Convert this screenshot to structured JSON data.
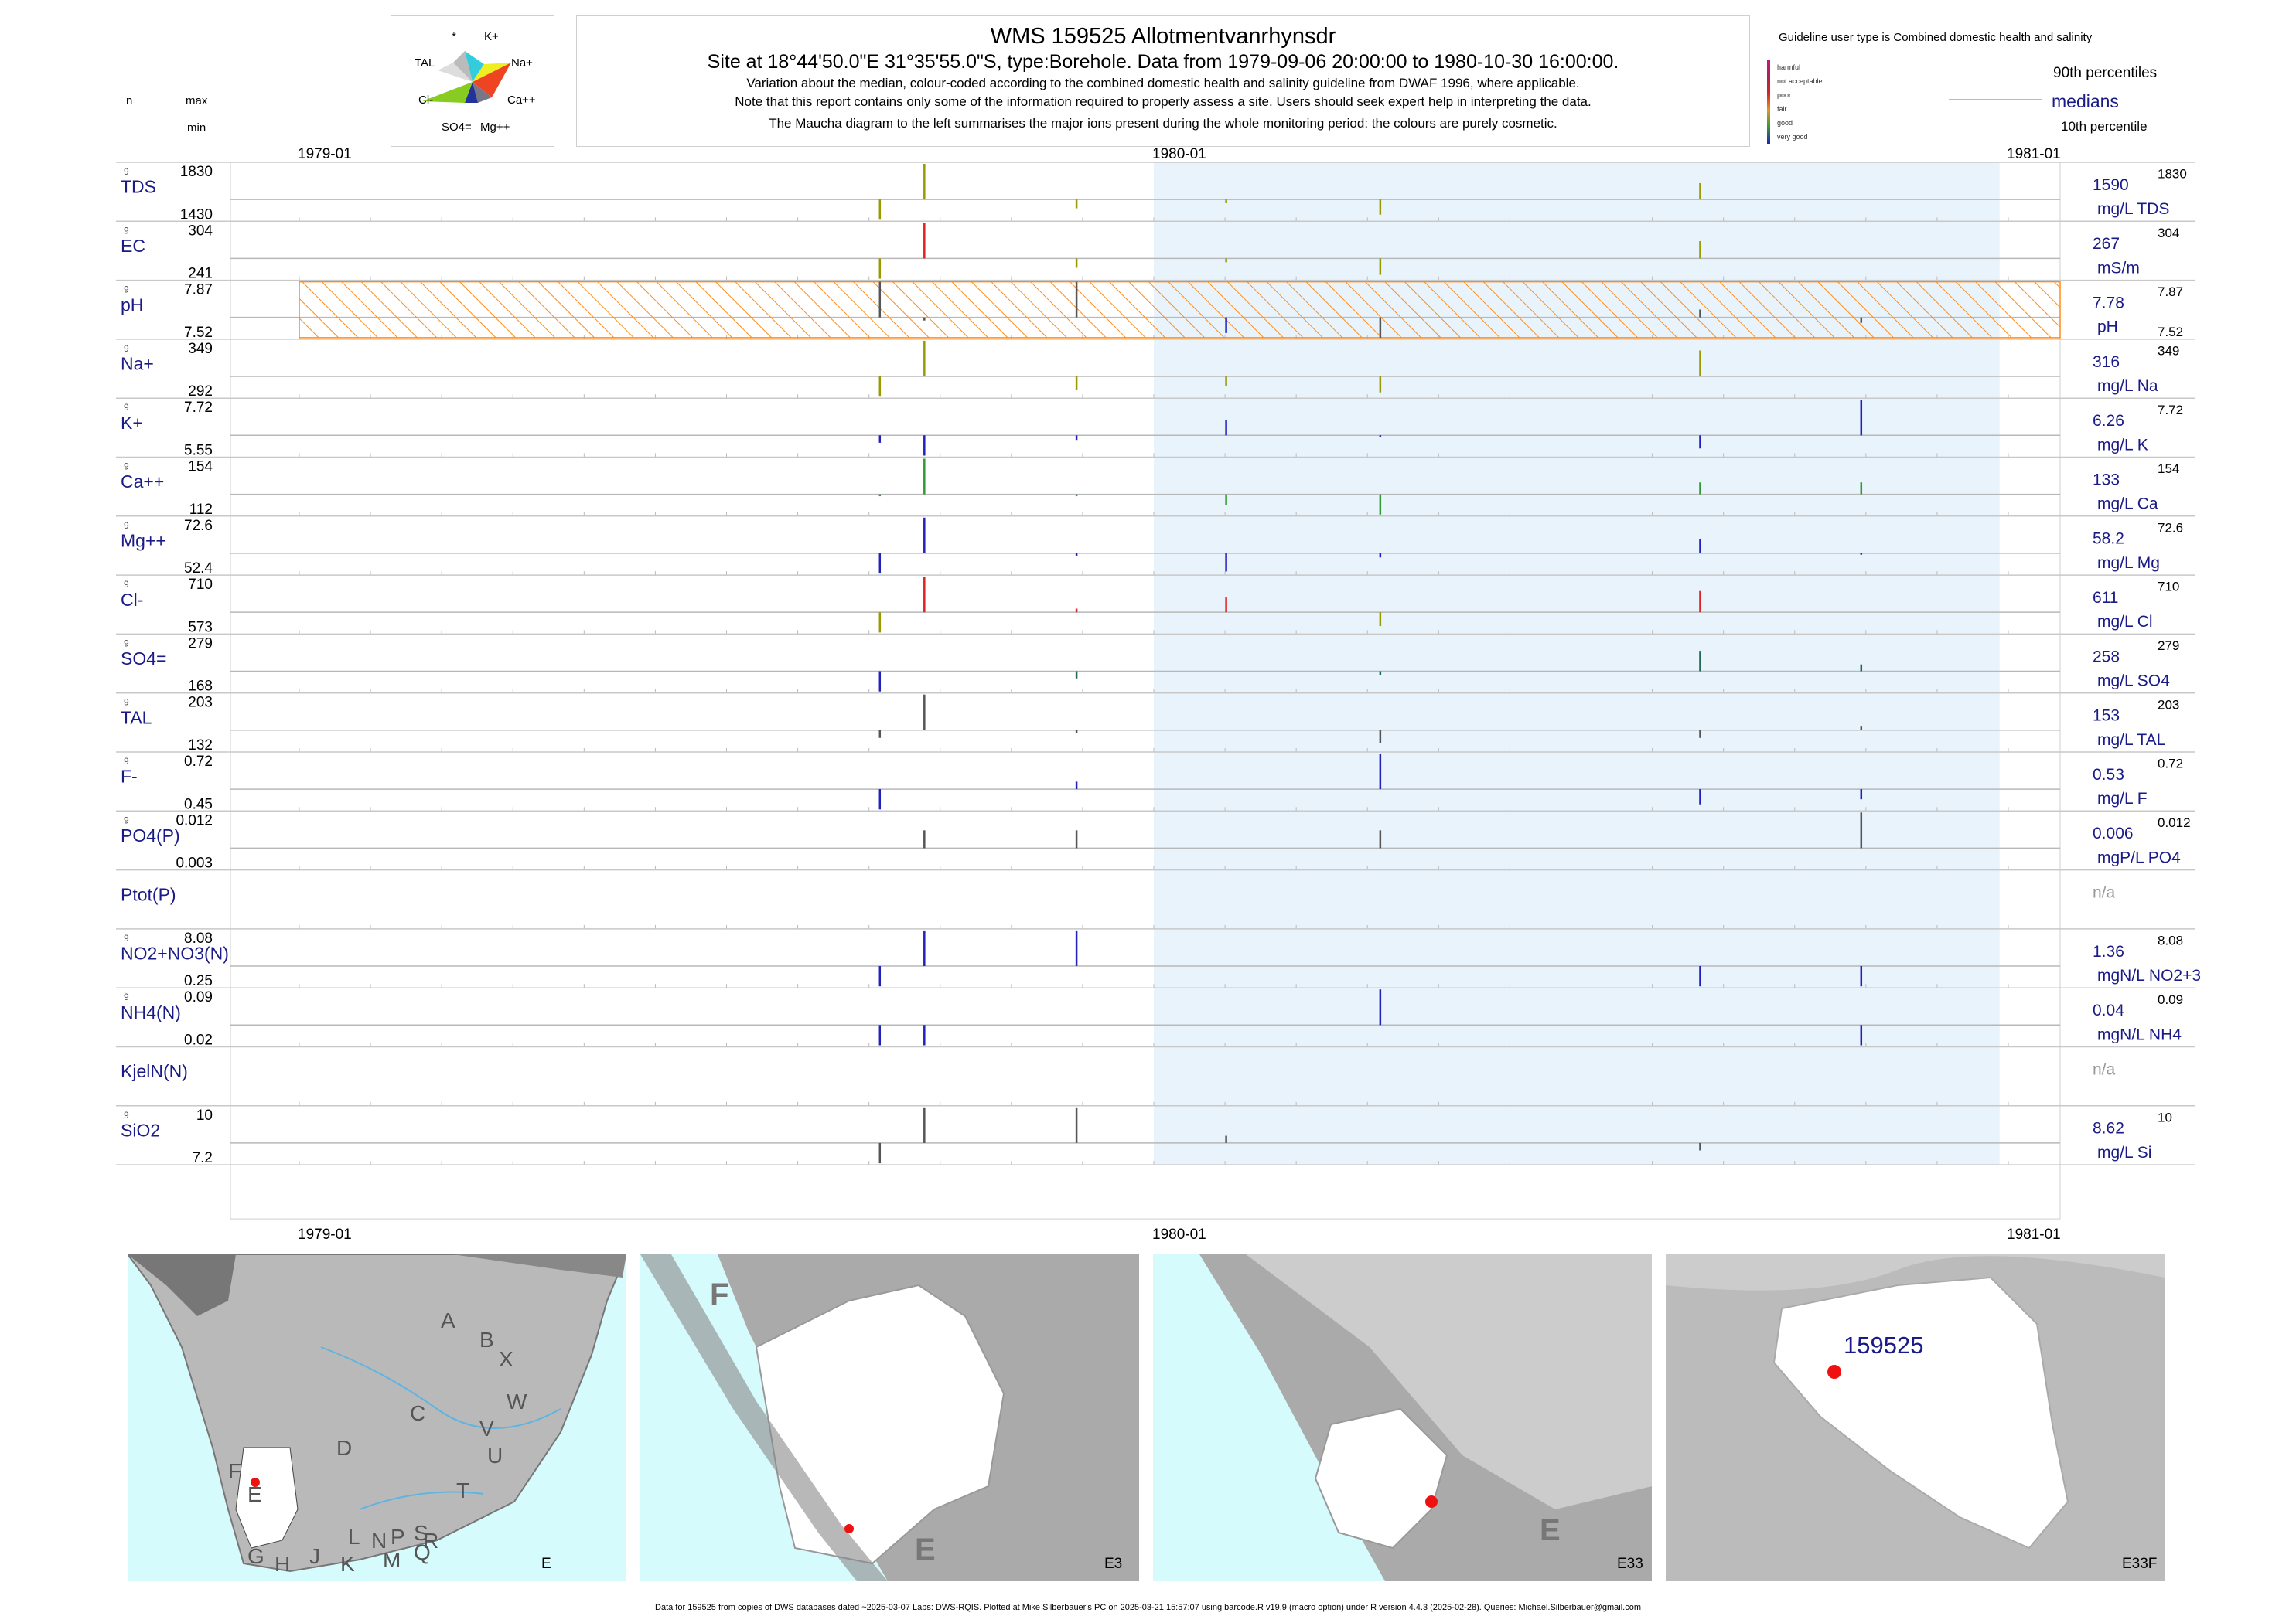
{
  "header": {
    "title": "WMS 159525  Allotmentvanrhynsdr",
    "subtitle": "Site at 18°44'50.0\"E 31°35'55.0\"S, type:Borehole.  Data from 1979-09-06 20:00:00 to 1980-10-30 16:00:00.",
    "note1": "Variation about the median,  colour-coded according to the combined domestic health and salinity guideline from DWAF 1996, where applicable.",
    "note2": "Note that this report contains only some of the information required to properly assess a site. Users should seek expert help in interpreting the data.",
    "note3": "The Maucha diagram to the left summarises the major ions present during the whole monitoring period: the colours are purely cosmetic."
  },
  "maucha": {
    "labels": [
      "*",
      "K+",
      "TAL",
      "Na+",
      "Cl-",
      "Ca++",
      "SO4=",
      "Mg++"
    ],
    "colors": {
      "K": "#33ccdd",
      "Na": "#eeee22",
      "Ca": "#ee4422",
      "Mg": "#777788",
      "SO4": "#223399",
      "Cl": "#88cc22",
      "TAL": "#dddddd"
    }
  },
  "column_headers": {
    "n": "n",
    "max": "max",
    "min": "min"
  },
  "legend": {
    "guideline_title": "Guideline user type is Combined domestic health and salinity",
    "categories": [
      {
        "label": "harmful",
        "color": "#cc1188"
      },
      {
        "label": "not acceptable",
        "color": "#aa2255"
      },
      {
        "label": "poor",
        "color": "#dd2222"
      },
      {
        "label": "fair",
        "color": "#dd9922"
      },
      {
        "label": "good",
        "color": "#339933"
      },
      {
        "label": "very good",
        "color": "#2222bb"
      }
    ],
    "p90": "90th percentiles",
    "medians": "medians",
    "p10": "10th percentile"
  },
  "chart_data": {
    "type": "line",
    "x_ticks": [
      "1979-01",
      "1980-01",
      "1981-01"
    ],
    "highlight_period": [
      "1980-01",
      "1980-12"
    ],
    "ph_guideline_band": "hatched range across pH panel",
    "sample_dates": [
      "1979-09-06",
      "1979-09-25",
      "1979-11-29",
      "1980-02-01",
      "1980-04-07",
      "1980-08-22",
      "1980-10-30"
    ],
    "panels": [
      {
        "label": "TDS",
        "n": "9",
        "max": "1830",
        "min": "1430",
        "median": "1590",
        "unit": "mg/L TDS",
        "values": [
          1430,
          1830,
          1520,
          1560,
          1470,
          1700,
          1590
        ],
        "colors": [
          "#999900",
          "#999900",
          "#999900",
          "#999900",
          "#999900",
          "#999900",
          "#999900"
        ]
      },
      {
        "label": "EC",
        "n": "9",
        "max": "304",
        "min": "241",
        "median": "267",
        "unit": "mS/m",
        "values": [
          241,
          304,
          255,
          262,
          246,
          285,
          267
        ],
        "colors": [
          "#999900",
          "#dd2222",
          "#999900",
          "#999900",
          "#999900",
          "#999900",
          "#999900"
        ]
      },
      {
        "label": "pH",
        "n": "9",
        "max": "7.87",
        "min": "7.52",
        "median": "7.78",
        "unit": "pH",
        "values": [
          7.87,
          7.74,
          7.87,
          7.58,
          7.52,
          7.8,
          7.71
        ],
        "colors": [
          "#555555",
          "#555555",
          "#555555",
          "#2222bb",
          "#555555",
          "#555555",
          "#555555"
        ]
      },
      {
        "label": "Na+",
        "n": "9",
        "max": "349",
        "min": "292",
        "median": "316",
        "unit": "mg/L Na",
        "values": [
          292,
          349,
          300,
          305,
          297,
          340,
          316
        ],
        "colors": [
          "#999900",
          "#999900",
          "#999900",
          "#999900",
          "#999900",
          "#999900",
          "#999900"
        ]
      },
      {
        "label": "K+",
        "n": "9",
        "max": "7.72",
        "min": "5.55",
        "median": "6.26",
        "unit": "mg/L K",
        "values": [
          6.0,
          5.55,
          6.1,
          6.9,
          6.2,
          5.8,
          7.72
        ],
        "colors": [
          "#2222bb",
          "#2222bb",
          "#2222bb",
          "#2222bb",
          "#2222bb",
          "#2222bb",
          "#2222bb"
        ]
      },
      {
        "label": "Ca++",
        "n": "9",
        "max": "154",
        "min": "112",
        "median": "133",
        "unit": "mg/L Ca",
        "values": [
          131,
          154,
          131,
          122,
          112,
          140,
          140
        ],
        "colors": [
          "#339933",
          "#339933",
          "#339933",
          "#339933",
          "#339933",
          "#339933",
          "#339933"
        ]
      },
      {
        "label": "Mg++",
        "n": "9",
        "max": "72.6",
        "min": "52.4",
        "median": "58.2",
        "unit": "mg/L Mg",
        "values": [
          52.4,
          72.6,
          57.5,
          53.0,
          57.0,
          64.0,
          57.8
        ],
        "colors": [
          "#2222bb",
          "#2222bb",
          "#2222bb",
          "#2222bb",
          "#2222bb",
          "#2222bb",
          "#2222bb"
        ]
      },
      {
        "label": "Cl-",
        "n": "9",
        "max": "710",
        "min": "573",
        "median": "611",
        "unit": "mg/L Cl",
        "values": [
          573,
          710,
          621,
          652,
          585,
          670,
          611
        ],
        "colors": [
          "#999900",
          "#dd2222",
          "#dd2222",
          "#dd2222",
          "#999900",
          "#dd2222",
          "#dd2222"
        ]
      },
      {
        "label": "SO4=",
        "n": "9",
        "max": "279",
        "min": "168",
        "median": "258",
        "unit": "mg/L SO4",
        "values": [
          168,
          258,
          226,
          258,
          241,
          270,
          262
        ],
        "colors": [
          "#2222bb",
          "#2222bb",
          "#226655",
          "#226655",
          "#226655",
          "#226655",
          "#226655"
        ]
      },
      {
        "label": "TAL",
        "n": "9",
        "max": "203",
        "min": "132",
        "median": "153",
        "unit": "mg/L TAL",
        "values": [
          145,
          203,
          150,
          153,
          140,
          145,
          158
        ],
        "colors": [
          "#555555",
          "#555555",
          "#555555",
          "#555555",
          "#555555",
          "#555555",
          "#555555"
        ]
      },
      {
        "label": "F-",
        "n": "9",
        "max": "0.72",
        "min": "0.45",
        "median": "0.53",
        "unit": "mg/L F",
        "values": [
          0.45,
          0.53,
          0.57,
          0.53,
          0.72,
          0.47,
          0.49
        ],
        "colors": [
          "#2222bb",
          "#2222bb",
          "#2222bb",
          "#2222bb",
          "#2222bb",
          "#2222bb",
          "#2222bb"
        ]
      },
      {
        "label": "PO4(P)",
        "n": "9",
        "max": "0.012",
        "min": "0.003",
        "median": "0.006",
        "unit": "mgP/L PO4",
        "values": [
          0.006,
          0.009,
          0.009,
          0.006,
          0.009,
          0.006,
          0.012
        ],
        "colors": [
          "#555555",
          "#555555",
          "#555555",
          "#555555",
          "#555555",
          "#555555",
          "#555555"
        ]
      },
      {
        "label": "Ptot(P)",
        "n": "",
        "max": "",
        "min": "",
        "median": "n/a",
        "unit": "",
        "values": [],
        "colors": []
      },
      {
        "label": "NO2+NO3(N)",
        "n": "9",
        "max": "8.08",
        "min": "0.25",
        "median": "1.36",
        "unit": "mgN/L NO2+3",
        "values": [
          0.25,
          8.08,
          8.08,
          1.36,
          1.36,
          0.25,
          0.25
        ],
        "colors": [
          "#2222bb",
          "#2222bb",
          "#2222bb",
          "#2222bb",
          "#2222bb",
          "#2222bb",
          "#2222bb"
        ]
      },
      {
        "label": "NH4(N)",
        "n": "9",
        "max": "0.09",
        "min": "0.02",
        "median": "0.04",
        "unit": "mgN/L NH4",
        "values": [
          0.02,
          0.02,
          0.04,
          0.04,
          0.09,
          0.04,
          0.02
        ],
        "colors": [
          "#2222bb",
          "#2222bb",
          "#2222bb",
          "#2222bb",
          "#2222bb",
          "#2222bb",
          "#2222bb"
        ]
      },
      {
        "label": "KjelN(N)",
        "n": "",
        "max": "",
        "min": "",
        "median": "n/a",
        "unit": "",
        "values": [],
        "colors": []
      },
      {
        "label": "SiO2",
        "n": "9",
        "max": "10",
        "min": "7.2",
        "median": "8.62",
        "unit": "mg/L Si",
        "values": [
          7.2,
          10,
          10,
          8.9,
          8.62,
          8.1,
          8.62
        ],
        "colors": [
          "#555555",
          "#555555",
          "#555555",
          "#555555",
          "#555555",
          "#555555",
          "#555555"
        ]
      }
    ]
  },
  "maps": [
    {
      "caption": "E",
      "letters": [
        "A",
        "B",
        "X",
        "C",
        "W",
        "D",
        "V",
        "U",
        "T",
        "F",
        "E",
        "G",
        "H",
        "J",
        "K",
        "L",
        "M",
        "N",
        "P",
        "Q",
        "R",
        "S"
      ]
    },
    {
      "caption": "E3",
      "big_letters": [
        "F",
        "E"
      ]
    },
    {
      "caption": "E33",
      "big_letters": [
        "E"
      ]
    },
    {
      "caption": "E33F",
      "site_label": "159525"
    }
  ],
  "footer": "Data for 159525 from copies of DWS databases dated ~2025-03-07 Labs: DWS-RQIS. Plotted at Mike Silberbauer's PC on 2025-03-21 15:57:07 using barcode.R v19.9 (macro option) under R version 4.4.3 (2025-02-28). Queries: Michael.Silberbauer@gmail.com"
}
